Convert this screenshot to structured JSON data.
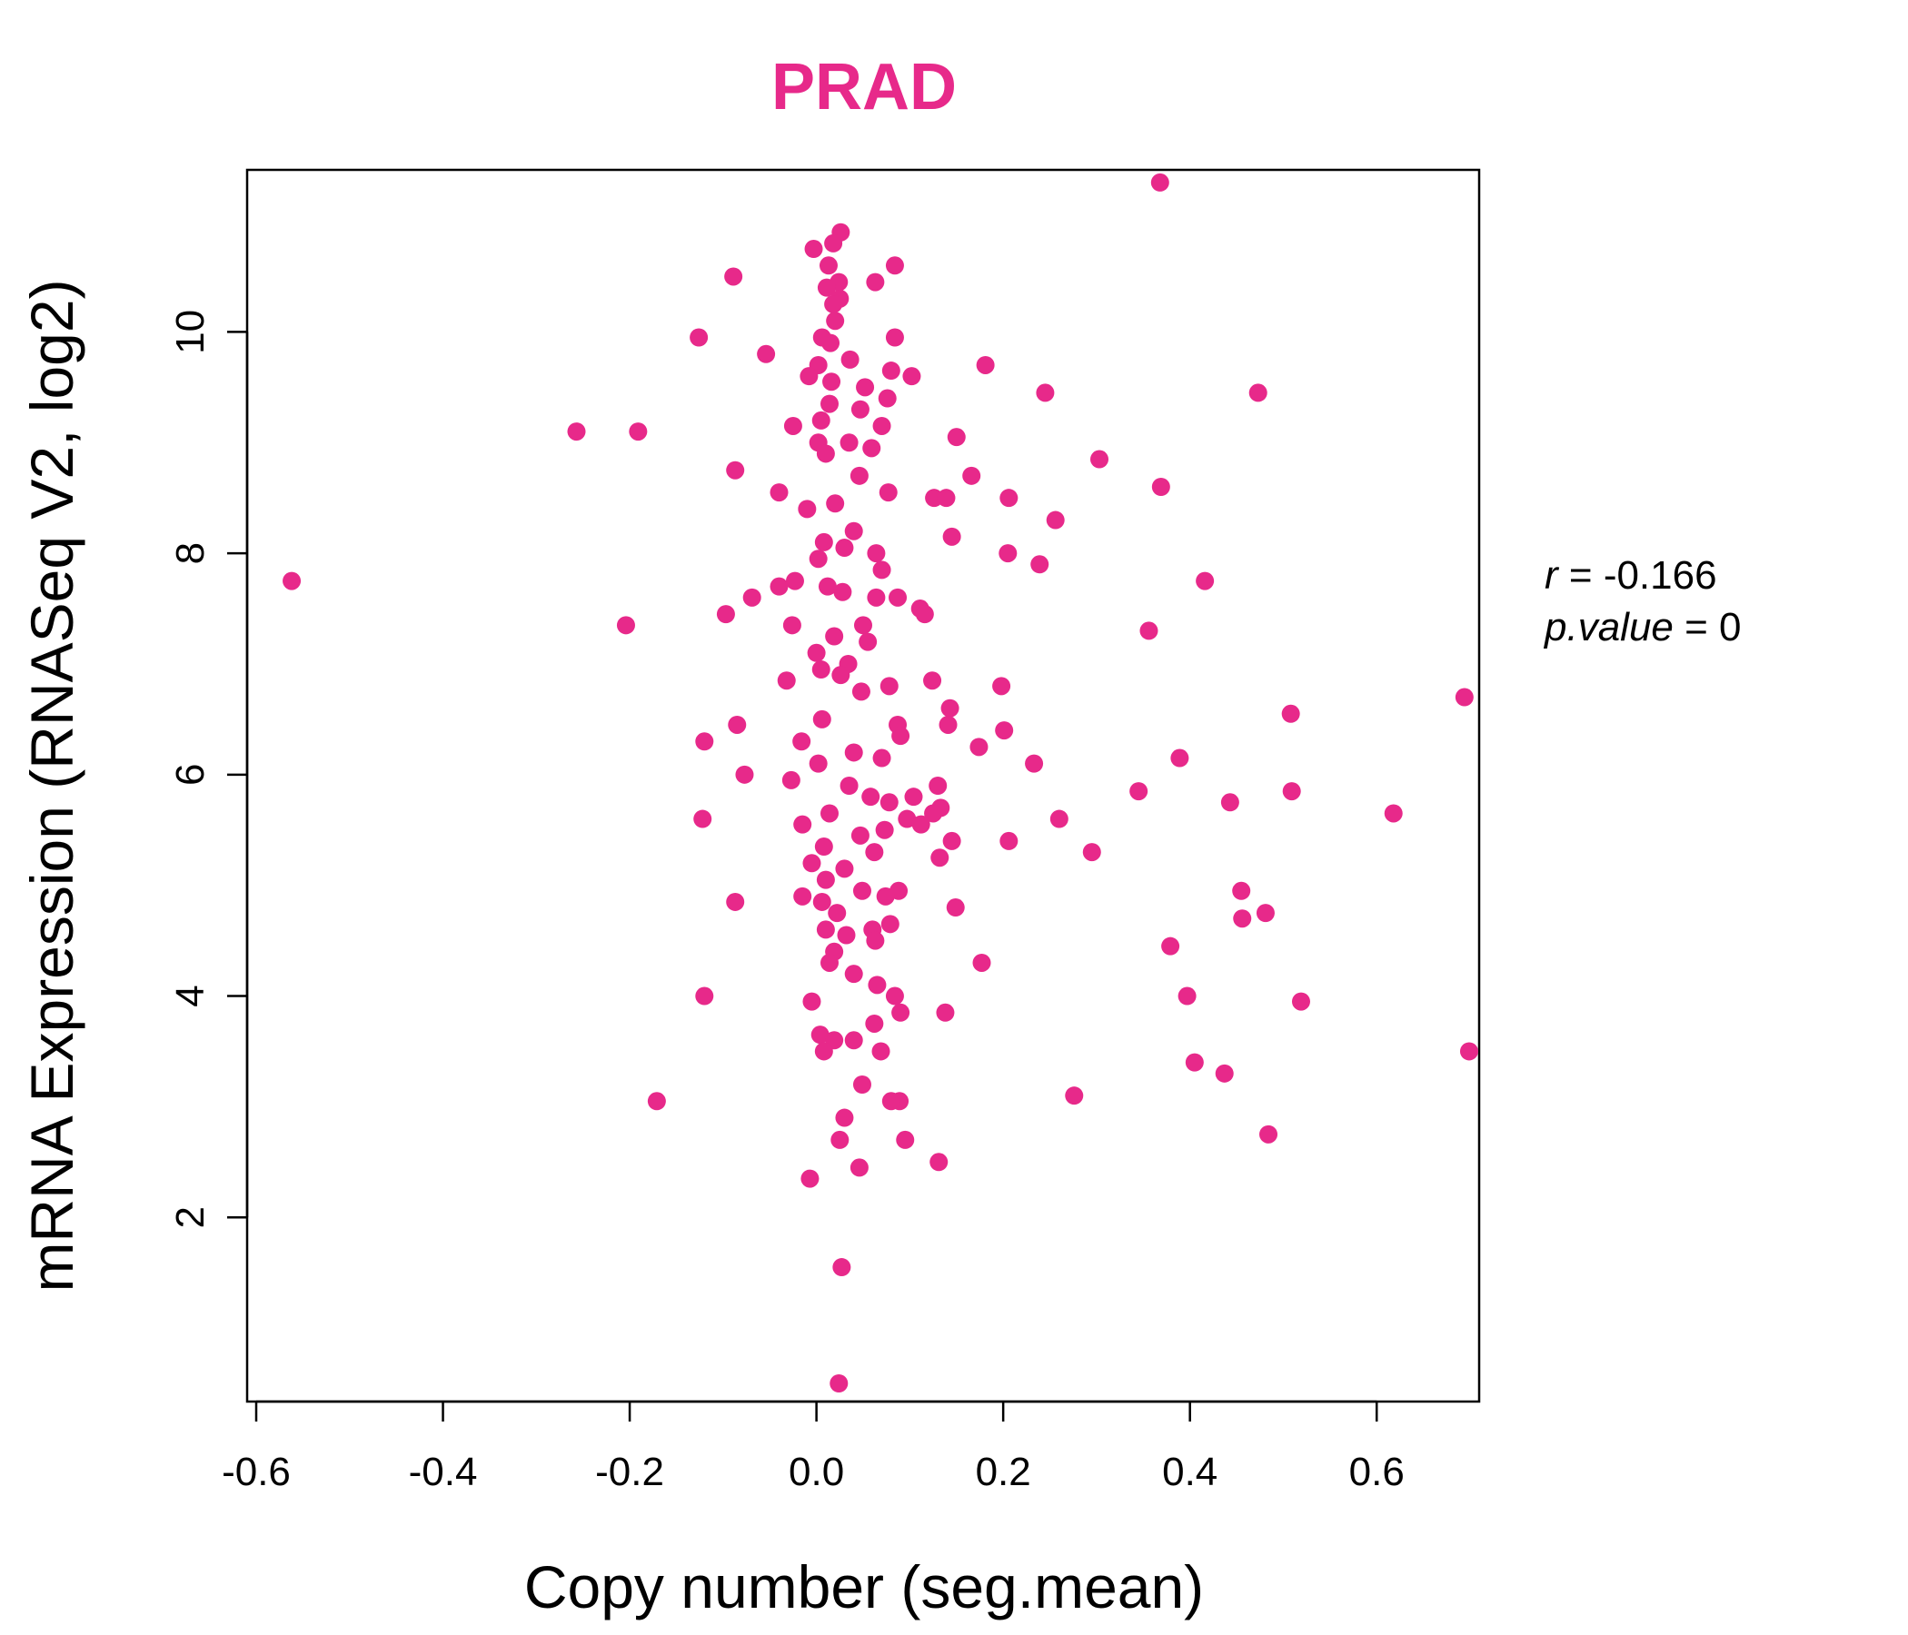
{
  "chart_data": {
    "type": "scatter",
    "title": "PRAD",
    "xlabel": "Copy number (seg.mean)",
    "ylabel": "mRNA Expression (RNASeq V2, log2)",
    "xlim": [
      -0.6,
      0.7
    ],
    "ylim": [
      0.5,
      11.3
    ],
    "x_ticks": [
      -0.6,
      -0.4,
      -0.2,
      0.0,
      0.2,
      0.4,
      0.6
    ],
    "x_tick_labels": [
      "-0.6",
      "-0.4",
      "-0.2",
      "0.0",
      "0.2",
      "0.4",
      "0.6"
    ],
    "y_ticks": [
      2,
      4,
      6,
      8,
      10
    ],
    "y_tick_labels": [
      "2",
      "4",
      "6",
      "8",
      "10"
    ],
    "grid": false,
    "legend": "none",
    "annotations": {
      "r_label": "r",
      "r_value": "-0.166",
      "p_label": "p.value",
      "p_value": "0"
    },
    "colors": {
      "point": "#E7298A",
      "title": "#E7298A"
    },
    "points": [
      [
        0.368,
        11.35
      ],
      [
        0.026,
        10.9
      ],
      [
        0.018,
        10.8
      ],
      [
        -0.003,
        10.75
      ],
      [
        0.084,
        10.6
      ],
      [
        0.013,
        10.6
      ],
      [
        -0.089,
        10.5
      ],
      [
        0.063,
        10.45
      ],
      [
        0.024,
        10.45
      ],
      [
        0.011,
        10.4
      ],
      [
        0.025,
        10.3
      ],
      [
        0.018,
        10.25
      ],
      [
        0.02,
        10.1
      ],
      [
        -0.126,
        9.95
      ],
      [
        0.006,
        9.95
      ],
      [
        0.084,
        9.95
      ],
      [
        0.015,
        9.9
      ],
      [
        -0.054,
        9.8
      ],
      [
        0.036,
        9.75
      ],
      [
        0.181,
        9.7
      ],
      [
        0.002,
        9.7
      ],
      [
        0.08,
        9.65
      ],
      [
        0.102,
        9.6
      ],
      [
        -0.008,
        9.6
      ],
      [
        0.016,
        9.55
      ],
      [
        0.052,
        9.5
      ],
      [
        0.245,
        9.45
      ],
      [
        0.473,
        9.45
      ],
      [
        0.076,
        9.4
      ],
      [
        0.014,
        9.35
      ],
      [
        0.047,
        9.3
      ],
      [
        0.005,
        9.2
      ],
      [
        -0.257,
        9.1
      ],
      [
        -0.191,
        9.1
      ],
      [
        -0.025,
        9.15
      ],
      [
        0.07,
        9.15
      ],
      [
        0.15,
        9.05
      ],
      [
        0.035,
        9.0
      ],
      [
        0.002,
        9.0
      ],
      [
        0.059,
        8.95
      ],
      [
        0.01,
        8.9
      ],
      [
        0.303,
        8.85
      ],
      [
        -0.087,
        8.75
      ],
      [
        0.166,
        8.7
      ],
      [
        0.046,
        8.7
      ],
      [
        0.369,
        8.6
      ],
      [
        -0.04,
        8.55
      ],
      [
        0.077,
        8.55
      ],
      [
        0.206,
        8.5
      ],
      [
        0.126,
        8.5
      ],
      [
        0.139,
        8.5
      ],
      [
        0.02,
        8.45
      ],
      [
        -0.01,
        8.4
      ],
      [
        0.256,
        8.3
      ],
      [
        0.04,
        8.2
      ],
      [
        0.145,
        8.15
      ],
      [
        0.008,
        8.1
      ],
      [
        0.03,
        8.05
      ],
      [
        0.064,
        8.0
      ],
      [
        0.205,
        8.0
      ],
      [
        0.002,
        7.95
      ],
      [
        0.239,
        7.9
      ],
      [
        0.07,
        7.85
      ],
      [
        -0.562,
        7.75
      ],
      [
        0.416,
        7.75
      ],
      [
        -0.023,
        7.75
      ],
      [
        -0.04,
        7.7
      ],
      [
        0.012,
        7.7
      ],
      [
        0.028,
        7.65
      ],
      [
        -0.069,
        7.6
      ],
      [
        0.064,
        7.6
      ],
      [
        0.087,
        7.6
      ],
      [
        -0.097,
        7.45
      ],
      [
        0.111,
        7.5
      ],
      [
        0.116,
        7.45
      ],
      [
        -0.204,
        7.35
      ],
      [
        -0.026,
        7.35
      ],
      [
        0.05,
        7.35
      ],
      [
        0.356,
        7.3
      ],
      [
        0.019,
        7.25
      ],
      [
        0.055,
        7.2
      ],
      [
        0.0,
        7.1
      ],
      [
        0.034,
        7.0
      ],
      [
        0.005,
        6.95
      ],
      [
        0.026,
        6.9
      ],
      [
        -0.032,
        6.85
      ],
      [
        0.124,
        6.85
      ],
      [
        0.078,
        6.8
      ],
      [
        0.198,
        6.8
      ],
      [
        0.048,
        6.75
      ],
      [
        0.694,
        6.7
      ],
      [
        0.143,
        6.6
      ],
      [
        0.508,
        6.55
      ],
      [
        0.006,
        6.5
      ],
      [
        -0.085,
        6.45
      ],
      [
        0.087,
        6.45
      ],
      [
        0.141,
        6.45
      ],
      [
        0.201,
        6.4
      ],
      [
        0.09,
        6.35
      ],
      [
        -0.12,
        6.3
      ],
      [
        -0.016,
        6.3
      ],
      [
        0.174,
        6.25
      ],
      [
        0.04,
        6.2
      ],
      [
        0.07,
        6.15
      ],
      [
        0.233,
        6.1
      ],
      [
        0.389,
        6.15
      ],
      [
        0.002,
        6.1
      ],
      [
        -0.077,
        6.0
      ],
      [
        -0.027,
        5.95
      ],
      [
        0.035,
        5.9
      ],
      [
        0.13,
        5.9
      ],
      [
        0.345,
        5.85
      ],
      [
        0.509,
        5.85
      ],
      [
        0.058,
        5.8
      ],
      [
        0.078,
        5.75
      ],
      [
        0.104,
        5.8
      ],
      [
        0.443,
        5.75
      ],
      [
        0.133,
        5.7
      ],
      [
        0.125,
        5.65
      ],
      [
        0.618,
        5.65
      ],
      [
        -0.122,
        5.6
      ],
      [
        0.014,
        5.65
      ],
      [
        0.097,
        5.6
      ],
      [
        0.26,
        5.6
      ],
      [
        0.112,
        5.55
      ],
      [
        -0.015,
        5.55
      ],
      [
        0.073,
        5.5
      ],
      [
        0.047,
        5.45
      ],
      [
        0.145,
        5.4
      ],
      [
        0.206,
        5.4
      ],
      [
        0.008,
        5.35
      ],
      [
        0.062,
        5.3
      ],
      [
        0.295,
        5.3
      ],
      [
        0.132,
        5.25
      ],
      [
        -0.005,
        5.2
      ],
      [
        0.03,
        5.15
      ],
      [
        0.01,
        5.05
      ],
      [
        0.455,
        4.95
      ],
      [
        0.049,
        4.95
      ],
      [
        0.088,
        4.95
      ],
      [
        0.074,
        4.9
      ],
      [
        -0.015,
        4.9
      ],
      [
        0.149,
        4.8
      ],
      [
        0.006,
        4.85
      ],
      [
        -0.087,
        4.85
      ],
      [
        0.481,
        4.75
      ],
      [
        0.022,
        4.75
      ],
      [
        0.456,
        4.7
      ],
      [
        0.079,
        4.65
      ],
      [
        0.06,
        4.6
      ],
      [
        0.01,
        4.6
      ],
      [
        0.032,
        4.55
      ],
      [
        0.063,
        4.5
      ],
      [
        0.379,
        4.45
      ],
      [
        0.019,
        4.4
      ],
      [
        0.177,
        4.3
      ],
      [
        0.014,
        4.3
      ],
      [
        0.04,
        4.2
      ],
      [
        0.065,
        4.1
      ],
      [
        0.084,
        4.0
      ],
      [
        0.397,
        4.0
      ],
      [
        -0.12,
        4.0
      ],
      [
        0.519,
        3.95
      ],
      [
        -0.005,
        3.95
      ],
      [
        0.09,
        3.85
      ],
      [
        0.138,
        3.85
      ],
      [
        0.062,
        3.75
      ],
      [
        0.004,
        3.65
      ],
      [
        0.04,
        3.6
      ],
      [
        0.019,
        3.6
      ],
      [
        0.069,
        3.5
      ],
      [
        0.008,
        3.5
      ],
      [
        0.405,
        3.4
      ],
      [
        0.699,
        3.5
      ],
      [
        0.437,
        3.3
      ],
      [
        0.049,
        3.2
      ],
      [
        0.276,
        3.1
      ],
      [
        -0.171,
        3.05
      ],
      [
        0.089,
        3.05
      ],
      [
        0.08,
        3.05
      ],
      [
        0.03,
        2.9
      ],
      [
        0.484,
        2.75
      ],
      [
        0.095,
        2.7
      ],
      [
        0.025,
        2.7
      ],
      [
        0.131,
        2.5
      ],
      [
        0.046,
        2.45
      ],
      [
        -0.007,
        2.35
      ],
      [
        0.027,
        1.55
      ],
      [
        0.024,
        0.5
      ]
    ]
  }
}
